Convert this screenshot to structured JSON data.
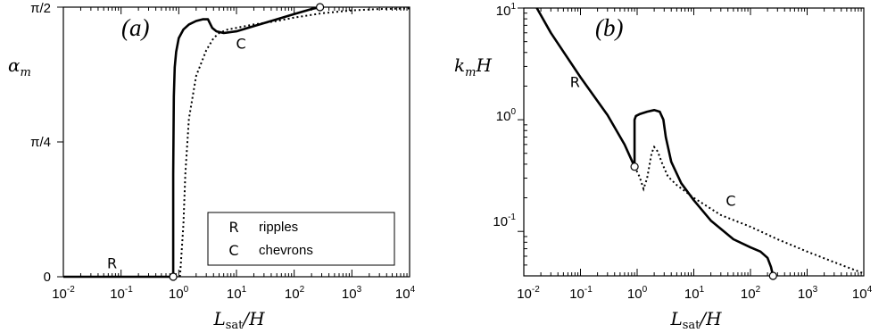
{
  "chart_data": [
    {
      "type": "line",
      "panel": "(a)",
      "xscale": "log",
      "xlim": [
        0.01,
        10000
      ],
      "ylim": [
        0,
        1.5708
      ],
      "xlabel": {
        "main": "L",
        "sub": "sat",
        "tail": "/H"
      },
      "ylabel": {
        "main": "α",
        "sub": "m"
      },
      "yticks": [
        {
          "value": 0,
          "label": "0"
        },
        {
          "value": 0.7854,
          "label": "π/4"
        },
        {
          "value": 1.5708,
          "label": "π/2"
        }
      ],
      "xticks": [
        {
          "value": 0.01,
          "base": "10",
          "exp": "-2"
        },
        {
          "value": 0.1,
          "base": "10",
          "exp": "-1"
        },
        {
          "value": 1,
          "base": "10",
          "exp": "0"
        },
        {
          "value": 10,
          "base": "10",
          "exp": "1"
        },
        {
          "value": 100,
          "base": "10",
          "exp": "2"
        },
        {
          "value": 1000,
          "base": "10",
          "exp": "3"
        },
        {
          "value": 10000,
          "base": "10",
          "exp": "4"
        }
      ],
      "legend": {
        "position": "bottom-right",
        "entries": [
          {
            "symbol": "R",
            "label": "ripples"
          },
          {
            "symbol": "C",
            "label": "chevrons"
          }
        ]
      },
      "series": [
        {
          "name": "ripples",
          "style": "solid",
          "x": [
            0.01,
            0.1,
            0.5,
            0.8,
            0.8,
            0.82,
            0.85,
            0.9,
            1.0,
            1.2,
            1.5,
            2.0,
            2.6,
            3.2,
            3.8,
            4.5,
            6,
            10,
            20,
            50,
            100,
            200,
            280
          ],
          "y": [
            0,
            0,
            0,
            0,
            0.6,
            1.05,
            1.22,
            1.31,
            1.39,
            1.44,
            1.47,
            1.49,
            1.5,
            1.5,
            1.45,
            1.43,
            1.42,
            1.43,
            1.46,
            1.5,
            1.53,
            1.56,
            1.571
          ]
        },
        {
          "name": "chevrons",
          "style": "dotted",
          "x": [
            1.05,
            1.2,
            1.3,
            1.5,
            2,
            3,
            4,
            5,
            7,
            10,
            20,
            50,
            100,
            300,
            1000,
            3000,
            10000
          ],
          "y": [
            0,
            0.3,
            0.6,
            0.92,
            1.17,
            1.32,
            1.39,
            1.42,
            1.44,
            1.45,
            1.47,
            1.49,
            1.51,
            1.535,
            1.552,
            1.56,
            1.563
          ]
        }
      ],
      "markers": [
        {
          "x": 0.8,
          "y": 0
        },
        {
          "x": 280,
          "y": 1.571
        }
      ],
      "annotations": [
        {
          "text": "R",
          "x": 0.07,
          "y": 0.08
        },
        {
          "text": "C",
          "x": 12,
          "y": 1.36
        }
      ]
    },
    {
      "type": "line",
      "panel": "(b)",
      "xscale": "log",
      "yscale": "log",
      "xlim": [
        0.01,
        10000
      ],
      "ylim": [
        0.04,
        10
      ],
      "xlabel": {
        "main": "L",
        "sub": "sat",
        "tail": "/H"
      },
      "ylabel": {
        "main": "k",
        "sub": "m",
        "tail": "H"
      },
      "yticks": [
        {
          "value": 0.1,
          "base": "10",
          "exp": "-1"
        },
        {
          "value": 1,
          "base": "10",
          "exp": "0"
        },
        {
          "value": 10,
          "base": "10",
          "exp": "1"
        }
      ],
      "xticks": [
        {
          "value": 0.01,
          "base": "10",
          "exp": "-2"
        },
        {
          "value": 0.1,
          "base": "10",
          "exp": "-1"
        },
        {
          "value": 1,
          "base": "10",
          "exp": "0"
        },
        {
          "value": 10,
          "base": "10",
          "exp": "1"
        },
        {
          "value": 100,
          "base": "10",
          "exp": "2"
        },
        {
          "value": 1000,
          "base": "10",
          "exp": "3"
        },
        {
          "value": 10000,
          "base": "10",
          "exp": "4"
        }
      ],
      "series": [
        {
          "name": "ripples",
          "style": "solid",
          "x": [
            0.017,
            0.03,
            0.1,
            0.3,
            0.6,
            0.9,
            0.9,
            0.95,
            1.1,
            1.5,
            2.0,
            2.5,
            2.9,
            3.2,
            4,
            6,
            10,
            20,
            50,
            100,
            150,
            200,
            230,
            250
          ],
          "y": [
            10,
            6.0,
            2.4,
            1.1,
            0.6,
            0.38,
            1.0,
            1.08,
            1.12,
            1.18,
            1.22,
            1.18,
            1.0,
            0.7,
            0.42,
            0.27,
            0.19,
            0.125,
            0.085,
            0.072,
            0.066,
            0.058,
            0.048,
            0.04
          ]
        },
        {
          "name": "chevrons",
          "style": "dotted",
          "x": [
            0.9,
            1.1,
            1.3,
            1.5,
            1.8,
            2.0,
            2.3,
            2.8,
            3.5,
            5,
            10,
            30,
            100,
            300,
            1000,
            3000,
            10000
          ],
          "y": [
            0.38,
            0.31,
            0.24,
            0.3,
            0.5,
            0.57,
            0.52,
            0.4,
            0.31,
            0.26,
            0.2,
            0.14,
            0.11,
            0.085,
            0.066,
            0.053,
            0.042
          ]
        }
      ],
      "markers": [
        {
          "x": 0.9,
          "y": 0.38
        },
        {
          "x": 250,
          "y": 0.04
        }
      ],
      "annotations": [
        {
          "text": "R",
          "x": 0.08,
          "y": 2.2
        },
        {
          "text": "C",
          "x": 45,
          "y": 0.19
        }
      ]
    }
  ]
}
